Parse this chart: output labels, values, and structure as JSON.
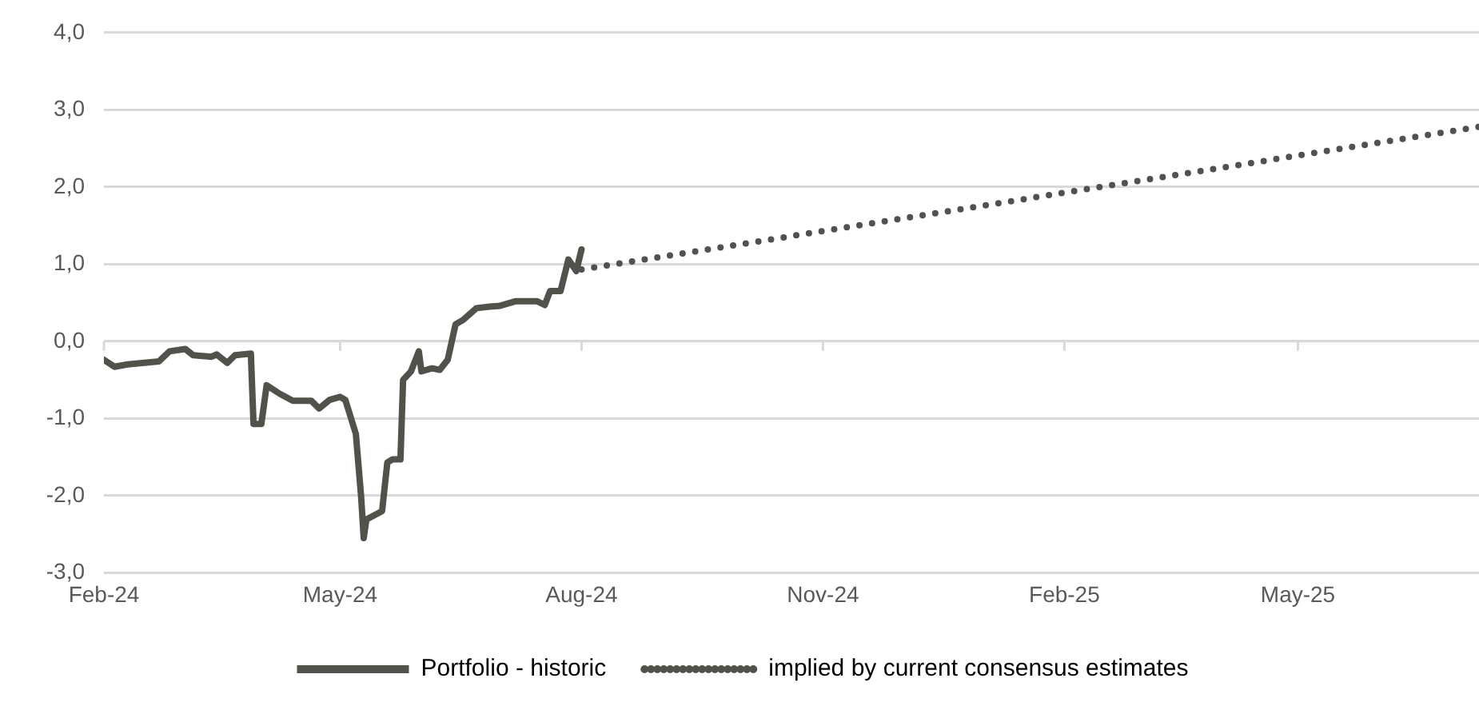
{
  "chart_data": {
    "type": "line",
    "xlim": [
      "2024-02-01",
      "2025-07-09"
    ],
    "xticks": [
      {
        "value": "2024-02-01",
        "label": "Feb-24"
      },
      {
        "value": "2024-05-01",
        "label": "May-24"
      },
      {
        "value": "2024-08-01",
        "label": "Aug-24"
      },
      {
        "value": "2024-11-01",
        "label": "Nov-24"
      },
      {
        "value": "2025-02-01",
        "label": "Feb-25"
      },
      {
        "value": "2025-05-01",
        "label": "May-25"
      }
    ],
    "ylim": [
      -3,
      4
    ],
    "yticks": [
      {
        "value": -3,
        "label": "-3,0"
      },
      {
        "value": -2,
        "label": "-2,0"
      },
      {
        "value": -1,
        "label": "-1,0"
      },
      {
        "value": 0,
        "label": "0,0"
      },
      {
        "value": 1,
        "label": "1,0"
      },
      {
        "value": 2,
        "label": "2,0"
      },
      {
        "value": 3,
        "label": "3,0"
      },
      {
        "value": 4,
        "label": "4,0"
      }
    ],
    "grid": "y",
    "legend": "bottom",
    "series": [
      {
        "name": "Portfolio - historic",
        "color": "#52524a",
        "line_style": "solid",
        "x": [
          "2024-02-01",
          "2024-02-05",
          "2024-02-10",
          "2024-02-22",
          "2024-02-26",
          "2024-03-03",
          "2024-03-06",
          "2024-03-13",
          "2024-03-15",
          "2024-03-19",
          "2024-03-22",
          "2024-03-28",
          "2024-03-29",
          "2024-04-01",
          "2024-04-03",
          "2024-04-08",
          "2024-04-13",
          "2024-04-20",
          "2024-04-23",
          "2024-04-27",
          "2024-05-01",
          "2024-05-03",
          "2024-05-07",
          "2024-05-09",
          "2024-05-10",
          "2024-05-11",
          "2024-05-17",
          "2024-05-19",
          "2024-05-21",
          "2024-05-24",
          "2024-05-25",
          "2024-05-28",
          "2024-05-31",
          "2024-06-01",
          "2024-06-05",
          "2024-06-08",
          "2024-06-11",
          "2024-06-14",
          "2024-06-17",
          "2024-06-22",
          "2024-06-27",
          "2024-07-01",
          "2024-07-07",
          "2024-07-15",
          "2024-07-18",
          "2024-07-20",
          "2024-07-24",
          "2024-07-27",
          "2024-07-30",
          "2024-08-01"
        ],
        "values": [
          -0.24,
          -0.33,
          -0.3,
          -0.26,
          -0.13,
          -0.1,
          -0.18,
          -0.2,
          -0.17,
          -0.28,
          -0.18,
          -0.16,
          -1.07,
          -1.07,
          -0.57,
          -0.68,
          -0.77,
          -0.77,
          -0.87,
          -0.76,
          -0.72,
          -0.76,
          -1.2,
          -2.01,
          -2.55,
          -2.31,
          -2.2,
          -1.57,
          -1.53,
          -1.53,
          -0.5,
          -0.39,
          -0.13,
          -0.39,
          -0.35,
          -0.37,
          -0.24,
          0.22,
          0.28,
          0.43,
          0.45,
          0.46,
          0.52,
          0.52,
          0.47,
          0.65,
          0.65,
          1.06,
          0.91,
          1.19
        ]
      },
      {
        "name": "implied by current consensus estimates",
        "color": "#52524a",
        "line_style": "dotted",
        "x": [
          "2024-08-01",
          "2025-07-09"
        ],
        "values": [
          0.93,
          2.78
        ]
      }
    ]
  }
}
